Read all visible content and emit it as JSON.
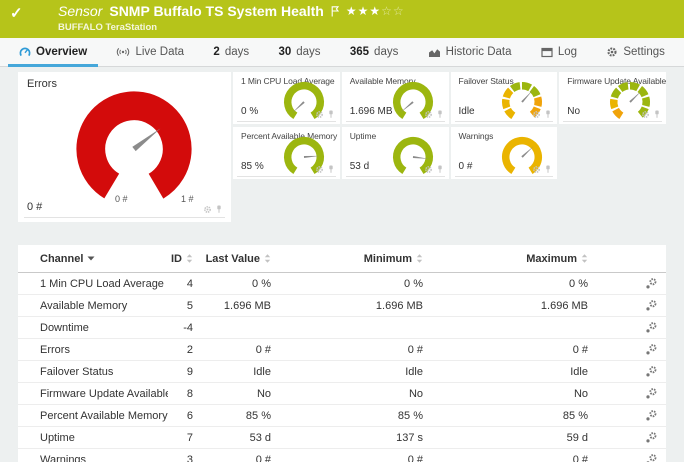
{
  "header": {
    "kind": "Sensor",
    "title": "SNMP Buffalo TS System Health",
    "device": "BUFFALO TeraStation",
    "stars_filled": 3,
    "stars_empty": 2,
    "bar_color": "#b6c41a"
  },
  "tabs": [
    {
      "id": "overview",
      "icon": "gauge",
      "label": "Overview",
      "active": true
    },
    {
      "id": "live-data",
      "icon": "live",
      "label": "Live Data",
      "active": false
    },
    {
      "id": "2-days",
      "num": "2",
      "label": "days",
      "active": false
    },
    {
      "id": "30-days",
      "num": "30",
      "label": "days",
      "active": false
    },
    {
      "id": "365-days",
      "num": "365",
      "label": "days",
      "active": false
    },
    {
      "id": "historic-data",
      "icon": "chart",
      "label": "Historic Data",
      "active": false
    },
    {
      "id": "log",
      "icon": "log",
      "label": "Log",
      "active": false
    },
    {
      "id": "settings",
      "icon": "gear",
      "label": "Settings",
      "active": false
    }
  ],
  "gauges": {
    "main": {
      "title": "Errors",
      "value": "0 #",
      "scale_min": "0 #",
      "scale_max": "1 #",
      "color": "#d30b0b",
      "needle_deg": -38
    },
    "small": [
      {
        "title": "1 Min CPU Load Average",
        "value": "0 %",
        "color": "#9cb60f",
        "needle_deg": 137
      },
      {
        "title": "Available Memory",
        "value": "1.696 MB",
        "color": "#9cb60f",
        "needle_deg": 140
      },
      {
        "title": "Failover Status",
        "value": "Idle",
        "segments": [
          "#eab400",
          "#eab400",
          "#eab400",
          "#9cb60f",
          "#9cb60f",
          "#9cb60f",
          "#f0a30a",
          "#f0a30a"
        ],
        "needle_deg": -48
      },
      {
        "title": "Firmware Update Available",
        "value": "No",
        "segments": [
          "#f0a30a",
          "#eab400",
          "#9cb60f",
          "#9cb60f",
          "#9cb60f",
          "#9cb60f",
          "#9cb60f",
          "#9cb60f"
        ],
        "needle_deg": -44
      },
      {
        "title": "Percent Available Memory",
        "value": "85 %",
        "color": "#9cb60f",
        "needle_deg": -4
      },
      {
        "title": "Uptime",
        "value": "53 d",
        "color": "#9cb60f",
        "needle_deg": 7
      },
      {
        "title": "Warnings",
        "value": "0 #",
        "color": "#eab400",
        "needle_deg": -43
      }
    ]
  },
  "table": {
    "headers": {
      "channel": "Channel",
      "id": "ID",
      "last": "Last Value",
      "min": "Minimum",
      "max": "Maximum"
    },
    "rows": [
      {
        "channel": "1 Min CPU Load Average",
        "id": "4",
        "last": "0 %",
        "min": "0 %",
        "max": "0 %"
      },
      {
        "channel": "Available Memory",
        "id": "5",
        "last": "1.696 MB",
        "min": "1.696 MB",
        "max": "1.696 MB"
      },
      {
        "channel": "Downtime",
        "id": "-4",
        "last": "",
        "min": "",
        "max": ""
      },
      {
        "channel": "Errors",
        "id": "2",
        "last": "0 #",
        "min": "0 #",
        "max": "0 #"
      },
      {
        "channel": "Failover Status",
        "id": "9",
        "last": "Idle",
        "min": "Idle",
        "max": "Idle"
      },
      {
        "channel": "Firmware Update Available",
        "id": "8",
        "last": "No",
        "min": "No",
        "max": "No"
      },
      {
        "channel": "Percent Available Memory",
        "id": "6",
        "last": "85 %",
        "min": "85 %",
        "max": "85 %"
      },
      {
        "channel": "Uptime",
        "id": "7",
        "last": "53 d",
        "min": "137 s",
        "max": "59 d"
      },
      {
        "channel": "Warnings",
        "id": "3",
        "last": "0 #",
        "min": "0 #",
        "max": "0 #"
      }
    ]
  }
}
